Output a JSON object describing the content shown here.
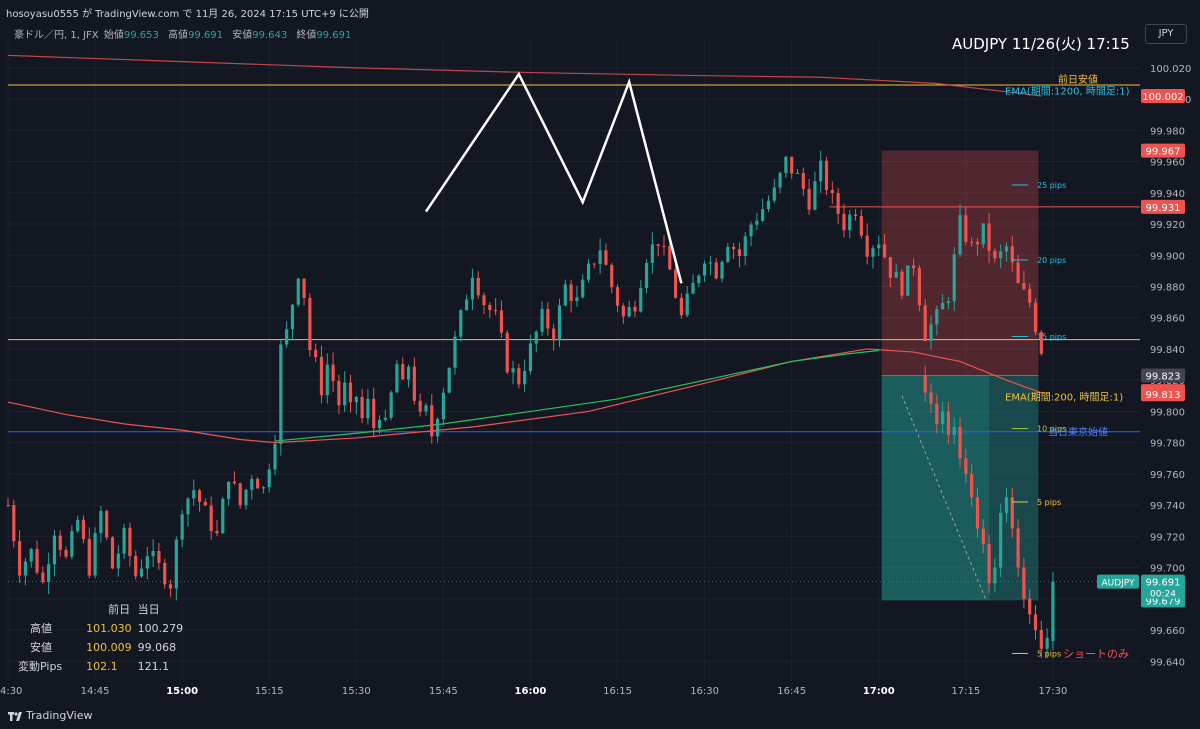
{
  "header": {
    "publisher_line": "hosoyasu0555 が TradingView.com で 11月 26, 2024 17:15 UTC+9 に公開"
  },
  "symbol_bar": {
    "name": "豪ドル／円, 1, JFX",
    "fields": [
      {
        "label": "始値",
        "value": "99.653"
      },
      {
        "label": "高値",
        "value": "99.691"
      },
      {
        "label": "安値",
        "value": "99.643"
      },
      {
        "label": "終値",
        "value": "99.691"
      }
    ]
  },
  "title": {
    "text": "AUDJPY  11/26(火)  17:15"
  },
  "currency_button": {
    "label": "JPY"
  },
  "stats": {
    "headers": [
      "前日",
      "当日"
    ],
    "rows": [
      {
        "label": "高値",
        "prev": "101.030",
        "today": "100.279"
      },
      {
        "label": "安値",
        "prev": "100.009",
        "today": "99.068"
      },
      {
        "label": "変動Pips",
        "prev": "102.1",
        "today": "121.1"
      }
    ]
  },
  "brand": {
    "name": "TradingView"
  },
  "colors": {
    "background": "#131722",
    "up": "#26a69a",
    "down": "#ef5350",
    "grid": "#1e222d",
    "ema200": "#ef5350",
    "ema1200": "#ef5350",
    "ema_fast": "#22c55e",
    "prev_low": "#f0c23c",
    "tokyo_open": "#2962ff"
  },
  "chart_data": {
    "type": "candlestick",
    "symbol": "AUDJPY",
    "interval": "1",
    "ylim": [
      99.628,
      100.034
    ],
    "y_ticks": [
      "100.020",
      "100.000",
      "99.980",
      "99.960",
      "99.940",
      "99.920",
      "99.900",
      "99.880",
      "99.860",
      "99.840",
      "99.820",
      "99.800",
      "99.780",
      "99.760",
      "99.740",
      "99.720",
      "99.700",
      "99.680",
      "99.660",
      "99.640"
    ],
    "x_ticks": [
      {
        "t": "14:30",
        "bold": false
      },
      {
        "t": "14:45",
        "bold": false
      },
      {
        "t": "15:00",
        "bold": true
      },
      {
        "t": "15:15",
        "bold": false
      },
      {
        "t": "15:30",
        "bold": false
      },
      {
        "t": "15:45",
        "bold": false
      },
      {
        "t": "16:00",
        "bold": true
      },
      {
        "t": "16:15",
        "bold": false
      },
      {
        "t": "16:30",
        "bold": false
      },
      {
        "t": "16:45",
        "bold": false
      },
      {
        "t": "17:00",
        "bold": true
      },
      {
        "t": "17:15",
        "bold": false
      },
      {
        "t": "17:30",
        "bold": false
      }
    ],
    "x_range_minutes": [
      0,
      195
    ],
    "x_tick_minutes": [
      0,
      15,
      30,
      45,
      60,
      75,
      90,
      105,
      120,
      135,
      150,
      165,
      180
    ],
    "close_path": [
      [
        0,
        99.74
      ],
      [
        2,
        99.7
      ],
      [
        4,
        99.71
      ],
      [
        6,
        99.69
      ],
      [
        8,
        99.725
      ],
      [
        10,
        99.705
      ],
      [
        12,
        99.73
      ],
      [
        14,
        99.7
      ],
      [
        16,
        99.735
      ],
      [
        18,
        99.7
      ],
      [
        20,
        99.72
      ],
      [
        22,
        99.695
      ],
      [
        24,
        99.71
      ],
      [
        26,
        99.7
      ],
      [
        28,
        99.69
      ],
      [
        30,
        99.74
      ],
      [
        32,
        99.75
      ],
      [
        34,
        99.735
      ],
      [
        36,
        99.72
      ],
      [
        38,
        99.76
      ],
      [
        40,
        99.74
      ],
      [
        42,
        99.76
      ],
      [
        44,
        99.75
      ],
      [
        46,
        99.785
      ],
      [
        47,
        99.84
      ],
      [
        48,
        99.85
      ],
      [
        49,
        99.87
      ],
      [
        50,
        99.89
      ],
      [
        51,
        99.875
      ],
      [
        52,
        99.84
      ],
      [
        53,
        99.83
      ],
      [
        54,
        99.815
      ],
      [
        55,
        99.83
      ],
      [
        56,
        99.82
      ],
      [
        57,
        99.805
      ],
      [
        58,
        99.815
      ],
      [
        59,
        99.8
      ],
      [
        60,
        99.81
      ],
      [
        61,
        99.795
      ],
      [
        62,
        99.805
      ],
      [
        63,
        99.79
      ],
      [
        64,
        99.8
      ],
      [
        65,
        99.79
      ],
      [
        66,
        99.81
      ],
      [
        67,
        99.83
      ],
      [
        68,
        99.815
      ],
      [
        69,
        99.83
      ],
      [
        70,
        99.81
      ],
      [
        71,
        99.795
      ],
      [
        72,
        99.8
      ],
      [
        73,
        99.785
      ],
      [
        74,
        99.8
      ],
      [
        76,
        99.83
      ],
      [
        78,
        99.86
      ],
      [
        80,
        99.89
      ],
      [
        82,
        99.87
      ],
      [
        84,
        99.86
      ],
      [
        86,
        99.83
      ],
      [
        88,
        99.82
      ],
      [
        90,
        99.84
      ],
      [
        92,
        99.86
      ],
      [
        94,
        99.85
      ],
      [
        96,
        99.88
      ],
      [
        98,
        99.87
      ],
      [
        100,
        99.89
      ],
      [
        102,
        99.905
      ],
      [
        104,
        99.88
      ],
      [
        106,
        99.86
      ],
      [
        108,
        99.87
      ],
      [
        110,
        99.9
      ],
      [
        112,
        99.91
      ],
      [
        114,
        99.89
      ],
      [
        116,
        99.86
      ],
      [
        118,
        99.88
      ],
      [
        120,
        99.9
      ],
      [
        122,
        99.89
      ],
      [
        124,
        99.91
      ],
      [
        126,
        99.9
      ],
      [
        128,
        99.92
      ],
      [
        130,
        99.93
      ],
      [
        132,
        99.94
      ],
      [
        134,
        99.96
      ],
      [
        136,
        99.95
      ],
      [
        138,
        99.935
      ],
      [
        140,
        99.955
      ],
      [
        142,
        99.935
      ],
      [
        144,
        99.92
      ],
      [
        146,
        99.93
      ],
      [
        148,
        99.905
      ],
      [
        150,
        99.91
      ],
      [
        152,
        99.89
      ],
      [
        154,
        99.88
      ],
      [
        156,
        99.895
      ],
      [
        158,
        99.85
      ],
      [
        160,
        99.86
      ],
      [
        162,
        99.875
      ],
      [
        164,
        99.92
      ],
      [
        166,
        99.905
      ],
      [
        168,
        99.915
      ],
      [
        170,
        99.895
      ],
      [
        172,
        99.905
      ],
      [
        174,
        99.88
      ],
      [
        176,
        99.87
      ],
      [
        178,
        99.84
      ]
    ],
    "series": [
      {
        "name": "EMA(期間:200, 時間足:1)"
      },
      {
        "name": "EMA(期間:1200, 時間足:1)"
      }
    ],
    "levels": [
      {
        "name": "前日安値",
        "price": 100.009
      },
      {
        "name": "当日東京始値",
        "price": 99.787
      },
      {
        "name": "",
        "price": 99.846
      }
    ],
    "position": {
      "side": "short",
      "label": "ショートのみ",
      "entry": 99.823,
      "stop": 99.967,
      "target": 99.679,
      "pip_labels": [
        "25 pips",
        "20 pips",
        "15 pips",
        "10 pips",
        "5 pips",
        "5 pips"
      ]
    },
    "price_tags": [
      {
        "text": "100.002",
        "price": 100.002,
        "color": "#ef5350"
      },
      {
        "text": "99.967",
        "price": 99.967,
        "color": "#ef5350"
      },
      {
        "text": "99.931",
        "price": 99.931,
        "color": "#ef5350"
      },
      {
        "text": "99.823",
        "price": 99.823,
        "color": "#434651"
      },
      {
        "text": "99.813",
        "price": 99.813,
        "color": "#ef5350"
      },
      {
        "text": "99.813",
        "price": 99.811,
        "color": "#ef5350"
      },
      {
        "text": "99.679",
        "price": 99.679,
        "color": "#26a69a"
      }
    ],
    "last_price": {
      "symbol": "AUDJPY",
      "price": "99.691",
      "countdown": "00:24"
    }
  }
}
